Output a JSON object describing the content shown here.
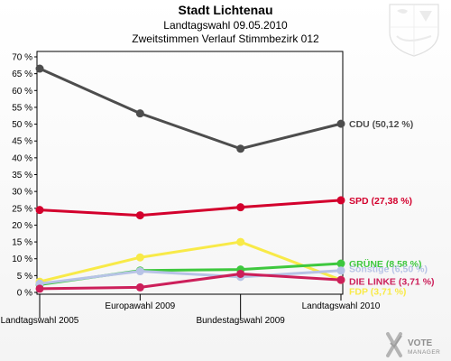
{
  "title": "Stadt Lichtenau",
  "subtitle_1": "Landtagswahl 09.05.2010",
  "subtitle_2": "Zweitstimmen Verlauf Stimmbezirk 012",
  "logo": {
    "name": "VOTE",
    "sub": "MANAGER"
  },
  "colors": {
    "CDU": "#4d4d4d",
    "SPD": "#d3002d",
    "GRÜNE": "#3ec83e",
    "Sonstige": "#b7c3e6",
    "DIE LINKE": "#cc1f5a",
    "FDP": "#f8ea48"
  },
  "chart_data": {
    "type": "line",
    "categories": [
      "Landtagswahl 2005",
      "Europawahl 2009",
      "Bundestagswahl 2009",
      "Landtagswahl 2010"
    ],
    "ylim": [
      0,
      70
    ],
    "yticks": [
      0,
      5,
      10,
      15,
      20,
      25,
      30,
      35,
      40,
      45,
      50,
      55,
      60,
      65,
      70
    ],
    "ytick_labels": [
      "0 %",
      "5 %",
      "10 %",
      "15 %",
      "20 %",
      "25 %",
      "30 %",
      "35 %",
      "40 %",
      "45 %",
      "50 %",
      "55 %",
      "60 %",
      "65 %",
      "70 %"
    ],
    "grid": false,
    "series": [
      {
        "name": "CDU",
        "values": [
          66.5,
          53.2,
          42.7,
          50.12
        ],
        "label": "CDU (50,12 %)"
      },
      {
        "name": "SPD",
        "values": [
          24.5,
          22.9,
          25.3,
          27.38
        ],
        "label": "SPD (27,38 %)"
      },
      {
        "name": "FDP",
        "values": [
          3.2,
          10.4,
          15.0,
          3.71
        ],
        "label": "FDP (3,71 %)"
      },
      {
        "name": "GRÜNE",
        "values": [
          2.3,
          6.5,
          6.8,
          8.58
        ],
        "label": "GRÜNE (8,58 %)"
      },
      {
        "name": "Sonstige",
        "values": [
          2.6,
          6.3,
          4.6,
          6.5
        ],
        "label": "Sonstige (6,50 %)"
      },
      {
        "name": "DIE LINKE",
        "values": [
          1.1,
          1.5,
          5.5,
          3.71
        ],
        "label": "DIE LINKE (3,71 %)"
      }
    ]
  }
}
